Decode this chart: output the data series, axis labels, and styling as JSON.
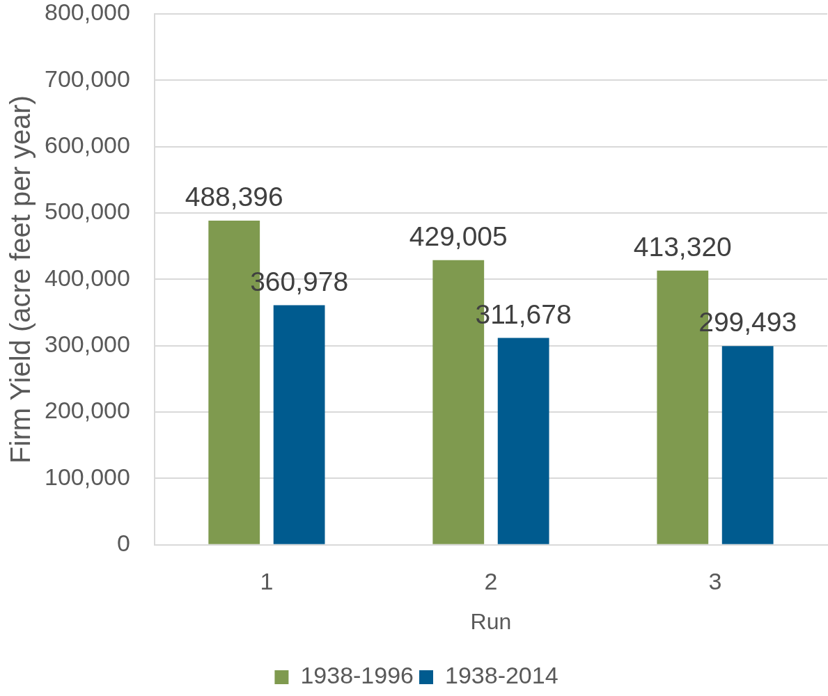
{
  "chart_data": {
    "type": "bar",
    "xlabel": "Run",
    "ylabel": "Firm Yield (acre feet per year)",
    "categories": [
      "1",
      "2",
      "3"
    ],
    "series": [
      {
        "name": "1938-1996",
        "color": "#7f9a4f",
        "values": [
          488396,
          429005,
          413320
        ],
        "value_labels": [
          "488,396",
          "429,005",
          "413,320"
        ]
      },
      {
        "name": "1938-2014",
        "color": "#005b8f",
        "values": [
          360978,
          311678,
          299493
        ],
        "value_labels": [
          "360,978",
          "311,678",
          "299,493"
        ]
      }
    ],
    "ylim": [
      0,
      800000
    ],
    "yticks": [
      0,
      {
        "value": 100000,
        "label": "100,000"
      },
      {
        "value": 200000,
        "label": "200,000"
      },
      {
        "value": 300000,
        "label": "300,000"
      },
      {
        "value": 400000,
        "label": "400,000"
      },
      {
        "value": 500000,
        "label": "500,000"
      },
      {
        "value": 600000,
        "label": "600,000"
      },
      {
        "value": 700000,
        "label": "700,000"
      },
      {
        "value": 800000,
        "label": "800,000"
      }
    ],
    "grid": "y",
    "legend": "bottom"
  }
}
